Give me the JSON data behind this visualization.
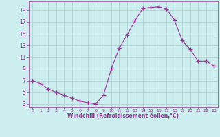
{
  "hours": [
    0,
    1,
    2,
    3,
    4,
    5,
    6,
    7,
    8,
    9,
    10,
    11,
    12,
    13,
    14,
    15,
    16,
    17,
    18,
    19,
    20,
    21,
    22,
    23
  ],
  "values": [
    7.0,
    6.5,
    5.5,
    5.0,
    4.5,
    4.0,
    3.5,
    3.2,
    3.0,
    4.5,
    9.0,
    12.5,
    14.8,
    17.2,
    19.3,
    19.5,
    19.6,
    19.2,
    17.3,
    13.8,
    12.3,
    10.3,
    10.3,
    9.5
  ],
  "line_color": "#993399",
  "marker": "+",
  "marker_size": 4,
  "bg_color": "#cceeee",
  "grid_color": "#aacccc",
  "xlabel": "Windchill (Refroidissement éolien,°C)",
  "xlabel_color": "#993399",
  "tick_color": "#993399",
  "ylim": [
    2.5,
    20.5
  ],
  "yticks": [
    3,
    5,
    7,
    9,
    11,
    13,
    15,
    17,
    19
  ],
  "xlim": [
    -0.5,
    23.5
  ],
  "xticks": [
    0,
    1,
    2,
    3,
    4,
    5,
    6,
    7,
    8,
    9,
    10,
    11,
    12,
    13,
    14,
    15,
    16,
    17,
    18,
    19,
    20,
    21,
    22,
    23
  ]
}
